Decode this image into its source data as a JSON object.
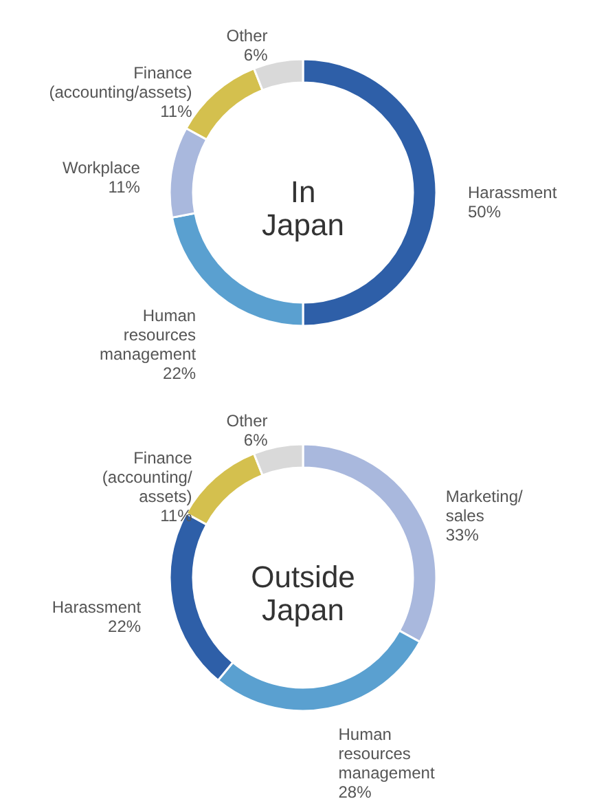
{
  "chart_data": [
    {
      "type": "donut",
      "title": "In Japan",
      "categories": [
        "Harassment",
        "Human resources management",
        "Workplace",
        "Finance (accounting/assets)",
        "Other"
      ],
      "values": [
        50,
        22,
        11,
        11,
        6
      ],
      "value_labels": [
        "50%",
        "22%",
        "11%",
        "11%",
        "6%"
      ],
      "colors": [
        "#2e5fa8",
        "#5aa0d0",
        "#a9b8dd",
        "#d4c04e",
        "#d9d9d9"
      ]
    },
    {
      "type": "donut",
      "title": "Outside Japan",
      "categories": [
        "Marketing/ sales",
        "Human resources management",
        "Harassment",
        "Finance (accounting/ assets)",
        "Other"
      ],
      "values": [
        33,
        28,
        22,
        11,
        6
      ],
      "value_labels": [
        "33%",
        "28%",
        "22%",
        "11%",
        "6%"
      ],
      "colors": [
        "#a9b8dd",
        "#5aa0d0",
        "#2e5fa8",
        "#d4c04e",
        "#d9d9d9"
      ]
    }
  ]
}
